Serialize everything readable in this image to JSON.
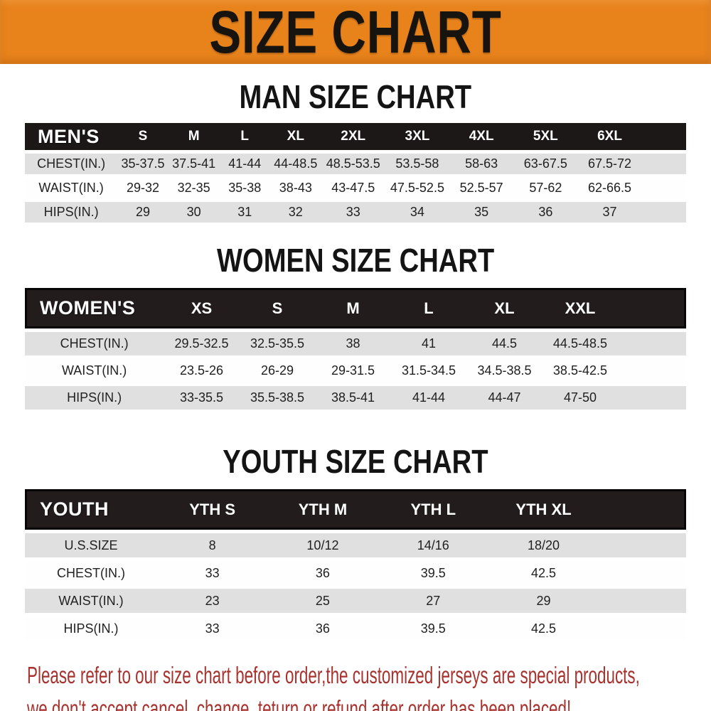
{
  "banner": {
    "title": "SIZE CHART"
  },
  "sections": [
    {
      "id": "men",
      "heading": "MAN SIZE CHART",
      "header_label": "MEN'S",
      "columns": [
        "S",
        "M",
        "L",
        "XL",
        "2XL",
        "3XL",
        "4XL",
        "5XL",
        "6XL"
      ],
      "rows": [
        {
          "label": "CHEST(IN.)",
          "values": [
            "35-37.5",
            "37.5-41",
            "41-44",
            "44-48.5",
            "48.5-53.5",
            "53.5-58",
            "58-63",
            "63-67.5",
            "67.5-72"
          ]
        },
        {
          "label": "WAIST(IN.)",
          "values": [
            "29-32",
            "32-35",
            "35-38",
            "38-43",
            "43-47.5",
            "47.5-52.5",
            "52.5-57",
            "57-62",
            "62-66.5"
          ]
        },
        {
          "label": "HIPS(IN.)",
          "values": [
            "29",
            "30",
            "31",
            "32",
            "33",
            "34",
            "35",
            "36",
            "37"
          ]
        }
      ]
    },
    {
      "id": "women",
      "heading": "WOMEN SIZE CHART",
      "header_label": "WOMEN'S",
      "columns": [
        "XS",
        "S",
        "M",
        "L",
        "XL",
        "XXL"
      ],
      "rows": [
        {
          "label": "CHEST(IN.)",
          "values": [
            "29.5-32.5",
            "32.5-35.5",
            "38",
            "41",
            "44.5",
            "44.5-48.5"
          ]
        },
        {
          "label": "WAIST(IN.)",
          "values": [
            "23.5-26",
            "26-29",
            "29-31.5",
            "31.5-34.5",
            "34.5-38.5",
            "38.5-42.5"
          ]
        },
        {
          "label": "HIPS(IN.)",
          "values": [
            "33-35.5",
            "35.5-38.5",
            "38.5-41",
            "41-44",
            "44-47",
            "47-50"
          ]
        }
      ]
    },
    {
      "id": "youth",
      "heading": "YOUTH SIZE CHART",
      "header_label": "YOUTH",
      "columns": [
        "YTH S",
        "YTH M",
        "YTH L",
        "YTH XL"
      ],
      "rows": [
        {
          "label": "U.S.SIZE",
          "values": [
            "8",
            "10/12",
            "14/16",
            "18/20"
          ]
        },
        {
          "label": "CHEST(IN.)",
          "values": [
            "33",
            "36",
            "39.5",
            "42.5"
          ]
        },
        {
          "label": "WAIST(IN.)",
          "values": [
            "23",
            "25",
            "27",
            "29"
          ]
        },
        {
          "label": "HIPS(IN.)",
          "values": [
            "33",
            "36",
            "39.5",
            "42.5"
          ]
        }
      ]
    }
  ],
  "footer": {
    "lines": [
      "Please refer to our size chart before order,the customized jerseys are special products,",
      "we don't accept cancel, change, teturn or refund after order has been placed!"
    ]
  },
  "colors": {
    "banner_bg": "#E8831C",
    "banner_text": "#17130E",
    "header_bar_bg": "#1C1817",
    "header_bar_text": "#FFFFFF",
    "row_shade": "#E0E0E0",
    "row_plain": "#FEFEFE",
    "cell_text": "#1F1F1F",
    "disclaimer_text": "#A8332E"
  }
}
